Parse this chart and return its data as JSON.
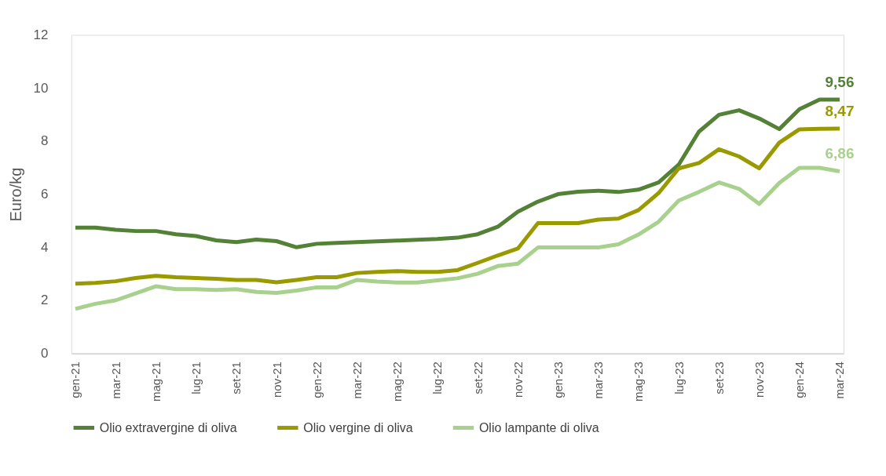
{
  "chart_data": {
    "type": "line",
    "ylabel": "Euro/kg",
    "categories": [
      "gen-21",
      null,
      "mar-21",
      null,
      "mag-21",
      null,
      "lug-21",
      null,
      "set-21",
      null,
      "nov-21",
      null,
      "gen-22",
      null,
      "mar-22",
      null,
      "mag-22",
      null,
      "lug-22",
      null,
      "set-22",
      null,
      "nov-22",
      null,
      "gen-23",
      null,
      "mar-23",
      null,
      "mag-23",
      null,
      "lug-23",
      null,
      "set-23",
      null,
      "nov-23",
      null,
      "gen-24",
      null,
      "mar-24"
    ],
    "series": [
      {
        "name": "Olio extravergine di oliva",
        "color": "#538135",
        "values": [
          4.74,
          4.74,
          4.66,
          4.61,
          4.61,
          4.49,
          4.42,
          4.26,
          4.19,
          4.29,
          4.23,
          4.0,
          4.13,
          4.16,
          4.19,
          4.22,
          4.25,
          4.28,
          4.31,
          4.36,
          4.49,
          4.77,
          5.34,
          5.72,
          6.0,
          6.09,
          6.13,
          6.08,
          6.17,
          6.44,
          7.11,
          8.35,
          8.99,
          9.16,
          8.85,
          8.45,
          9.2,
          9.56,
          9.56
        ],
        "value_labels": [
          null,
          null,
          null,
          null,
          null,
          null,
          null,
          null,
          null,
          null,
          null,
          null,
          null,
          null,
          null,
          null,
          null,
          null,
          null,
          null,
          null,
          null,
          null,
          null,
          null,
          null,
          null,
          null,
          null,
          null,
          null,
          null,
          null,
          null,
          null,
          null,
          null,
          null,
          "9,56"
        ]
      },
      {
        "name": "Olio vergine di oliva",
        "color": "#999900",
        "values": [
          2.63,
          2.66,
          2.72,
          2.84,
          2.92,
          2.87,
          2.84,
          2.81,
          2.77,
          2.77,
          2.68,
          2.77,
          2.87,
          2.87,
          3.03,
          3.07,
          3.1,
          3.07,
          3.07,
          3.14,
          3.41,
          3.69,
          3.95,
          4.91,
          4.91,
          4.91,
          5.04,
          5.08,
          5.4,
          6.04,
          6.97,
          7.17,
          7.69,
          7.42,
          6.97,
          7.94,
          8.44,
          8.46,
          8.47
        ],
        "value_labels": [
          null,
          null,
          null,
          null,
          null,
          null,
          null,
          null,
          null,
          null,
          null,
          null,
          null,
          null,
          null,
          null,
          null,
          null,
          null,
          null,
          null,
          null,
          null,
          null,
          null,
          null,
          null,
          null,
          null,
          null,
          null,
          null,
          null,
          null,
          null,
          null,
          null,
          null,
          "8,47"
        ]
      },
      {
        "name": "Olio lampante di oliva",
        "color": "#a9d18e",
        "values": [
          1.68,
          1.87,
          2.0,
          2.26,
          2.53,
          2.42,
          2.42,
          2.39,
          2.42,
          2.32,
          2.28,
          2.37,
          2.49,
          2.49,
          2.77,
          2.71,
          2.67,
          2.67,
          2.75,
          2.83,
          3.0,
          3.29,
          3.38,
          3.99,
          3.99,
          3.99,
          3.99,
          4.11,
          4.48,
          4.96,
          5.76,
          6.08,
          6.44,
          6.2,
          5.63,
          6.42,
          6.99,
          6.99,
          6.86
        ],
        "value_labels": [
          null,
          null,
          null,
          null,
          null,
          null,
          null,
          null,
          null,
          null,
          null,
          null,
          null,
          null,
          null,
          null,
          null,
          null,
          null,
          null,
          null,
          null,
          null,
          null,
          null,
          null,
          null,
          null,
          null,
          null,
          null,
          null,
          null,
          null,
          null,
          null,
          null,
          null,
          "6,86"
        ]
      }
    ],
    "ylim": [
      0,
      12
    ],
    "yticks": [
      0,
      2,
      4,
      6,
      8,
      10,
      12
    ],
    "grid": false,
    "legend": "bottom",
    "line_style": "solid",
    "marker": "none"
  }
}
